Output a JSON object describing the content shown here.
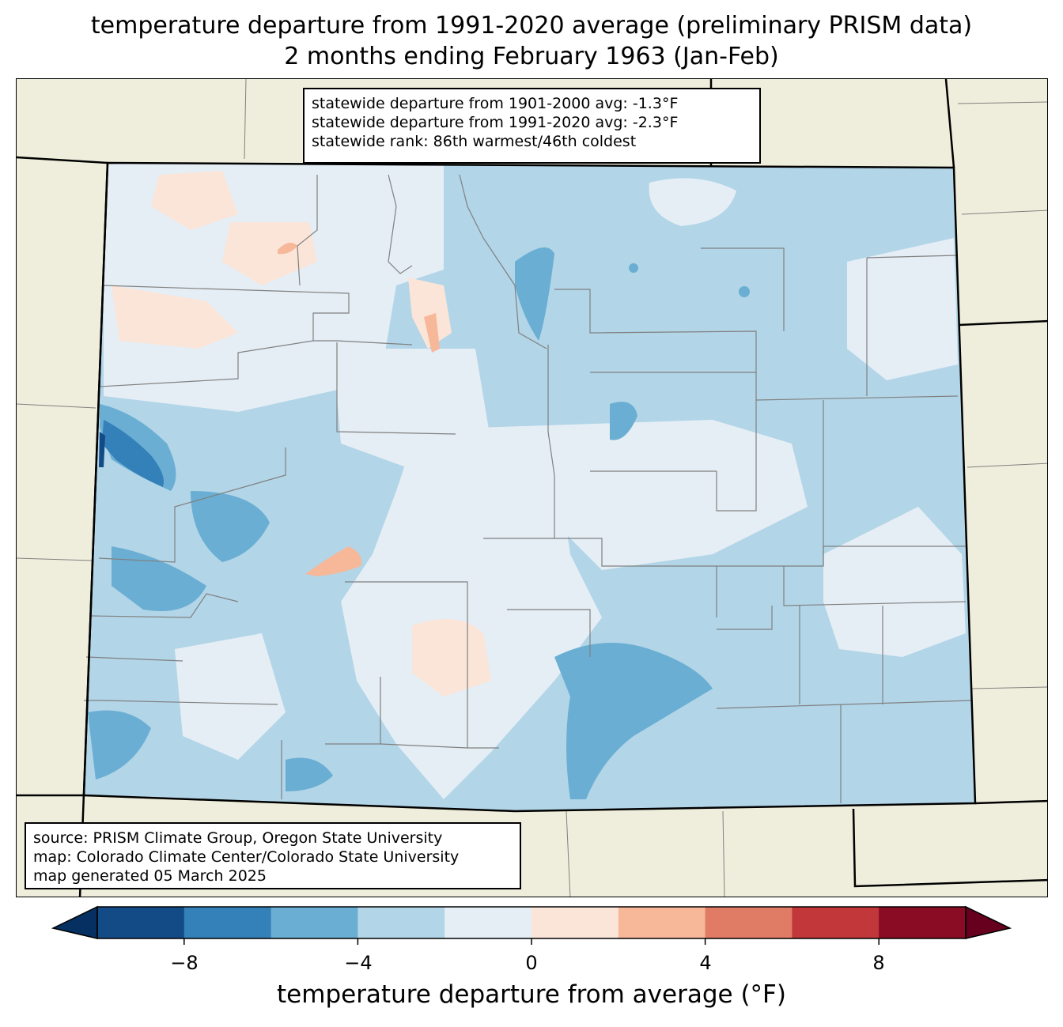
{
  "title": {
    "line1": "temperature departure from 1991-2020 average (preliminary PRISM data)",
    "line2": "2 months ending February 1963 (Jan-Feb)"
  },
  "stats": {
    "line1": "statewide departure from 1901-2000 avg: -1.3°F",
    "line2": "statewide departure from 1991-2020 avg: -2.3°F",
    "line3": "statewide rank: 86th warmest/46th coldest"
  },
  "source": {
    "line1": "source: PRISM Climate Group, Oregon State University",
    "line2": "map: Colorado Climate Center/Colorado State University",
    "line3": "map generated 05 March 2025"
  },
  "colorbar": {
    "label": "temperature departure from average (°F)",
    "ticks": [
      "−8",
      "−4",
      "0",
      "4",
      "8"
    ],
    "bins": [
      {
        "range": "-10 to -8",
        "color": "#134b87"
      },
      {
        "range": "-8 to -6",
        "color": "#3480b9"
      },
      {
        "range": "-6 to -4",
        "color": "#6aaed3"
      },
      {
        "range": "-4 to -2",
        "color": "#b2d5e8"
      },
      {
        "range": "-2 to 0",
        "color": "#e5eef5"
      },
      {
        "range": "0 to 2",
        "color": "#fbe5d8"
      },
      {
        "range": "2 to 4",
        "color": "#f7b799"
      },
      {
        "range": "4 to 6",
        "color": "#e07b66"
      },
      {
        "range": "6 to 8",
        "color": "#c1373a"
      },
      {
        "range": "8 to 10",
        "color": "#890b24"
      }
    ],
    "under_color": "#053061",
    "over_color": "#67001f"
  },
  "colors": {
    "land": "#efeedc",
    "county_lines": "#808080",
    "state_lines": "#000000"
  }
}
